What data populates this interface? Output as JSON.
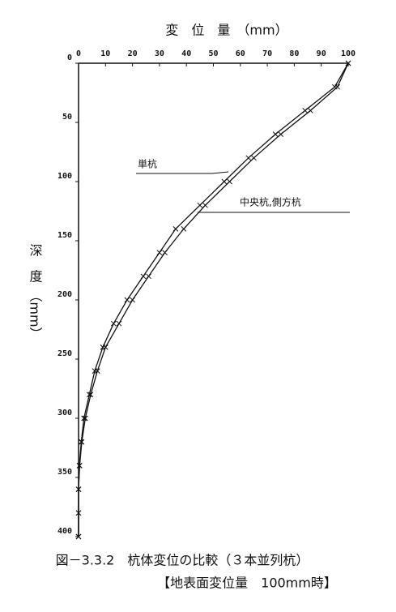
{
  "chart_data": {
    "type": "line",
    "x_label": "変　位　量　（mm）",
    "y_label": "深　度　（mm）",
    "caption": [
      "図－3.3.2　杭体変位の比較（３本並列杭）",
      "【地表面変位量　100mm時】"
    ],
    "annotations": [
      "単杭",
      "中央杭,側方杭"
    ],
    "depth": [
      0,
      20,
      40,
      60,
      80,
      100,
      120,
      140,
      160,
      180,
      200,
      220,
      240,
      260,
      280,
      300,
      320,
      340,
      360,
      380,
      400
    ],
    "series": [
      {
        "name": "単杭",
        "color": "#111111",
        "values": [
          100,
          96,
          86,
          75,
          65,
          56,
          47,
          39,
          32,
          26,
          20,
          15,
          10,
          7,
          4.5,
          2.5,
          1.2,
          0.4,
          0,
          0,
          0
        ]
      },
      {
        "name": "中央杭,側方杭",
        "color": "#111111",
        "values": [
          100,
          95,
          84,
          73,
          63,
          54,
          45,
          36,
          30,
          24,
          18,
          13,
          9,
          6,
          4,
          2,
          1,
          0.3,
          0,
          0,
          0
        ]
      }
    ],
    "xlim": [
      0,
      100
    ],
    "xticks": [
      0,
      10,
      20,
      30,
      40,
      50,
      60,
      70,
      80,
      90,
      100
    ],
    "ylim": [
      0,
      400
    ],
    "yticks": [
      0,
      50,
      100,
      150,
      200,
      250,
      300,
      350,
      400
    ]
  }
}
